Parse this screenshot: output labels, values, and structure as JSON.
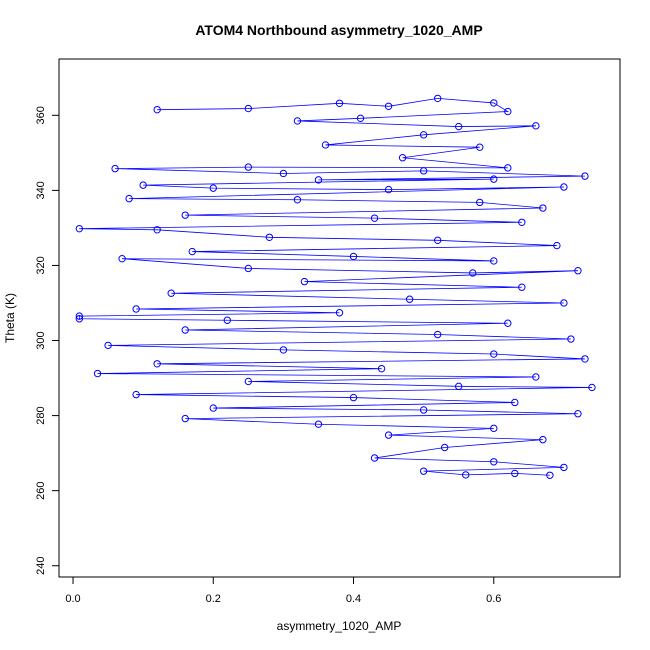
{
  "chart_data": {
    "type": "scatter",
    "title": "ATOM4 Northbound asymmetry_1020_AMP",
    "xlabel": "asymmetry_1020_AMP",
    "ylabel": "Theta (K)",
    "xlim": [
      -0.02,
      0.78
    ],
    "ylim": [
      237,
      375
    ],
    "xticks": [
      0.0,
      0.2,
      0.4,
      0.6
    ],
    "xtick_labels": [
      "0.0",
      "0.2",
      "0.4",
      "0.6"
    ],
    "yticks": [
      240,
      260,
      280,
      300,
      320,
      340,
      360
    ],
    "ytick_labels": [
      "240",
      "260",
      "280",
      "300",
      "320",
      "340",
      "360"
    ],
    "grid": false,
    "legend": "none",
    "style": {
      "point_color": "#0000ff",
      "line_color": "#0000ff",
      "marker": "open-circle",
      "connected": true
    },
    "series": [
      {
        "values": [
          [
            0.12,
            361.5
          ],
          [
            0.25,
            361.8
          ],
          [
            0.38,
            363.2
          ],
          [
            0.45,
            362.4
          ],
          [
            0.52,
            364.5
          ],
          [
            0.6,
            363.3
          ],
          [
            0.62,
            361.0
          ],
          [
            0.41,
            359.2
          ],
          [
            0.32,
            358.5
          ],
          [
            0.55,
            357.0
          ],
          [
            0.66,
            357.2
          ],
          [
            0.5,
            354.8
          ],
          [
            0.36,
            352.1
          ],
          [
            0.58,
            351.5
          ],
          [
            0.47,
            348.7
          ],
          [
            0.62,
            346.0
          ],
          [
            0.25,
            346.2
          ],
          [
            0.06,
            345.8
          ],
          [
            0.3,
            344.5
          ],
          [
            0.5,
            345.2
          ],
          [
            0.73,
            343.8
          ],
          [
            0.35,
            342.8
          ],
          [
            0.6,
            343.0
          ],
          [
            0.1,
            341.4
          ],
          [
            0.2,
            340.6
          ],
          [
            0.45,
            340.2
          ],
          [
            0.7,
            340.9
          ],
          [
            0.08,
            337.8
          ],
          [
            0.32,
            337.5
          ],
          [
            0.58,
            336.8
          ],
          [
            0.67,
            335.3
          ],
          [
            0.16,
            333.4
          ],
          [
            0.43,
            332.6
          ],
          [
            0.64,
            331.5
          ],
          [
            0.009,
            329.8
          ],
          [
            0.12,
            329.5
          ],
          [
            0.28,
            327.5
          ],
          [
            0.52,
            326.7
          ],
          [
            0.69,
            325.3
          ],
          [
            0.17,
            323.7
          ],
          [
            0.4,
            322.4
          ],
          [
            0.6,
            321.2
          ],
          [
            0.07,
            321.8
          ],
          [
            0.25,
            319.2
          ],
          [
            0.57,
            318.0
          ],
          [
            0.72,
            318.6
          ],
          [
            0.33,
            315.7
          ],
          [
            0.64,
            314.2
          ],
          [
            0.14,
            312.6
          ],
          [
            0.48,
            311.0
          ],
          [
            0.7,
            310.0
          ],
          [
            0.09,
            308.4
          ],
          [
            0.38,
            307.4
          ],
          [
            0.009,
            306.5
          ],
          [
            0.009,
            305.8
          ],
          [
            0.22,
            305.4
          ],
          [
            0.62,
            304.6
          ],
          [
            0.16,
            302.8
          ],
          [
            0.52,
            301.6
          ],
          [
            0.71,
            300.4
          ],
          [
            0.05,
            298.7
          ],
          [
            0.3,
            297.5
          ],
          [
            0.6,
            296.4
          ],
          [
            0.73,
            295.1
          ],
          [
            0.12,
            293.8
          ],
          [
            0.44,
            292.5
          ],
          [
            0.035,
            291.2
          ],
          [
            0.66,
            290.3
          ],
          [
            0.25,
            289.1
          ],
          [
            0.55,
            287.8
          ],
          [
            0.74,
            287.5
          ],
          [
            0.09,
            285.6
          ],
          [
            0.4,
            284.8
          ],
          [
            0.63,
            283.5
          ],
          [
            0.2,
            282.0
          ],
          [
            0.5,
            281.5
          ],
          [
            0.72,
            280.5
          ],
          [
            0.16,
            279.2
          ],
          [
            0.35,
            277.7
          ],
          [
            0.6,
            276.6
          ],
          [
            0.45,
            274.8
          ],
          [
            0.67,
            273.6
          ],
          [
            0.53,
            271.5
          ],
          [
            0.43,
            268.7
          ],
          [
            0.6,
            267.7
          ],
          [
            0.7,
            266.2
          ],
          [
            0.5,
            265.2
          ],
          [
            0.56,
            264.2
          ],
          [
            0.63,
            264.6
          ],
          [
            0.68,
            264.1
          ]
        ]
      }
    ]
  }
}
